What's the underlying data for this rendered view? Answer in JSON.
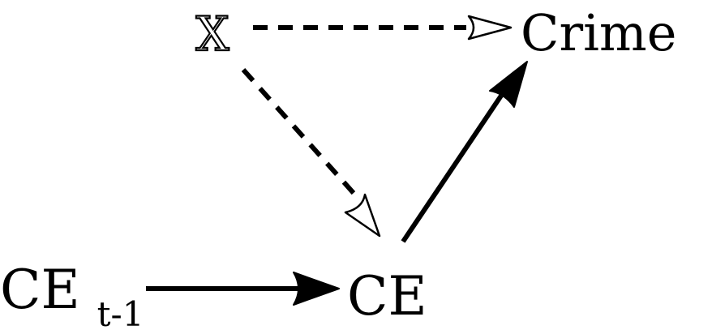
{
  "nodes": {
    "x": {
      "label": "X"
    },
    "crime": {
      "label": "Crime"
    },
    "ce": {
      "label": "CE"
    },
    "ce_lag": {
      "label": "CE",
      "subscript": "t-1"
    }
  },
  "edges": [
    {
      "from": "X",
      "to": "Crime",
      "style": "dashed",
      "arrowhead": "open"
    },
    {
      "from": "X",
      "to": "CE",
      "style": "dashed",
      "arrowhead": "open"
    },
    {
      "from": "CE",
      "to": "Crime",
      "style": "solid",
      "arrowhead": "filled"
    },
    {
      "from": "CE t-1",
      "to": "CE",
      "style": "solid",
      "arrowhead": "filled"
    }
  ]
}
